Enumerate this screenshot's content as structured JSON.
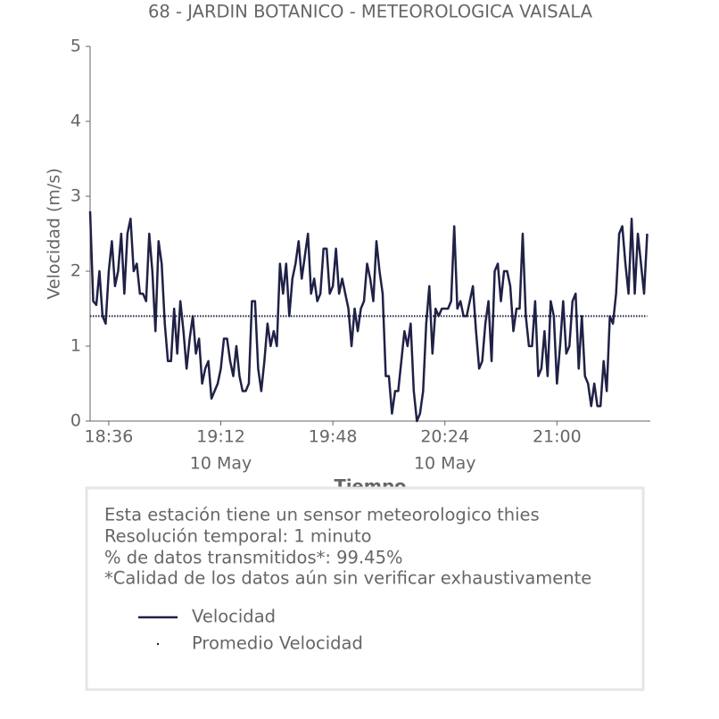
{
  "chart_data": {
    "type": "line",
    "title": "68 - JARDIN BOTANICO - METEOROLOGICA VAISALA",
    "ylabel": "Velocidad (m/s)",
    "xlabel": "Tiempo",
    "x": [
      "18:30",
      "18:31",
      "18:32",
      "18:33",
      "18:34",
      "18:35",
      "18:36",
      "18:37",
      "18:38",
      "18:39",
      "18:40",
      "18:41",
      "18:42",
      "18:43",
      "18:44",
      "18:45",
      "18:46",
      "18:47",
      "18:48",
      "18:49",
      "18:50",
      "18:51",
      "18:52",
      "18:53",
      "18:54",
      "18:55",
      "18:56",
      "18:57",
      "18:58",
      "18:59",
      "19:00",
      "19:01",
      "19:02",
      "19:03",
      "19:04",
      "19:05",
      "19:06",
      "19:07",
      "19:08",
      "19:09",
      "19:10",
      "19:11",
      "19:12",
      "19:13",
      "19:14",
      "19:15",
      "19:16",
      "19:17",
      "19:18",
      "19:19",
      "19:20",
      "19:21",
      "19:22",
      "19:23",
      "19:24",
      "19:25",
      "19:26",
      "19:27",
      "19:28",
      "19:29",
      "19:30",
      "19:31",
      "19:32",
      "19:33",
      "19:34",
      "19:35",
      "19:36",
      "19:37",
      "19:38",
      "19:39",
      "19:40",
      "19:41",
      "19:42",
      "19:43",
      "19:44",
      "19:45",
      "19:46",
      "19:47",
      "19:48",
      "19:49",
      "19:50",
      "19:51",
      "19:52",
      "19:53",
      "19:54",
      "19:55",
      "19:56",
      "19:57",
      "19:58",
      "19:59",
      "20:00",
      "20:01",
      "20:02",
      "20:03",
      "20:04",
      "20:05",
      "20:06",
      "20:07",
      "20:08",
      "20:09",
      "20:10",
      "20:11",
      "20:12",
      "20:13",
      "20:14",
      "20:15",
      "20:16",
      "20:17",
      "20:18",
      "20:19",
      "20:20",
      "20:21",
      "20:22",
      "20:23",
      "20:24",
      "20:25",
      "20:26",
      "20:27",
      "20:28",
      "20:29",
      "20:30",
      "20:31",
      "20:32",
      "20:33",
      "20:34",
      "20:35",
      "20:36",
      "20:37",
      "20:38",
      "20:39",
      "20:40",
      "20:41",
      "20:42",
      "20:43",
      "20:44",
      "20:45",
      "20:46",
      "20:47",
      "20:48",
      "20:49",
      "20:50",
      "20:51",
      "20:52",
      "20:53",
      "20:54",
      "20:55",
      "20:56",
      "20:57",
      "20:58",
      "20:59",
      "21:00",
      "21:01",
      "21:02",
      "21:03",
      "21:04",
      "21:05",
      "21:06",
      "21:07",
      "21:08",
      "21:09",
      "21:10",
      "21:11",
      "21:12",
      "21:13",
      "21:14",
      "21:15",
      "21:16",
      "21:17",
      "21:18",
      "21:19",
      "21:20",
      "21:21",
      "21:22",
      "21:23",
      "21:24",
      "21:25",
      "21:26",
      "21:27",
      "21:28",
      "21:29"
    ],
    "series": [
      {
        "name": "Velocidad",
        "color": "#1f2146",
        "style": "solid",
        "values": [
          2.8,
          1.6,
          1.55,
          2.0,
          1.4,
          1.3,
          2.0,
          2.4,
          1.8,
          2.0,
          2.5,
          1.7,
          2.5,
          2.7,
          2.0,
          2.1,
          1.7,
          1.7,
          1.6,
          2.5,
          2.0,
          1.2,
          2.4,
          2.1,
          1.3,
          0.8,
          0.8,
          1.5,
          0.9,
          1.6,
          1.2,
          0.7,
          1.1,
          1.4,
          0.9,
          1.1,
          0.5,
          0.7,
          0.8,
          0.3,
          0.4,
          0.5,
          0.7,
          1.1,
          1.1,
          0.8,
          0.6,
          1.0,
          0.6,
          0.4,
          0.4,
          0.5,
          1.6,
          1.6,
          0.7,
          0.4,
          0.8,
          1.3,
          1.0,
          1.2,
          1.0,
          2.1,
          1.7,
          2.1,
          1.4,
          1.9,
          2.1,
          2.4,
          1.9,
          2.2,
          2.5,
          1.7,
          1.9,
          1.6,
          1.7,
          2.3,
          2.3,
          1.7,
          1.8,
          2.3,
          1.7,
          1.9,
          1.7,
          1.5,
          1.0,
          1.5,
          1.2,
          1.5,
          1.6,
          2.1,
          1.9,
          1.6,
          2.4,
          2.0,
          1.7,
          0.6,
          0.6,
          0.1,
          0.4,
          0.4,
          0.8,
          1.2,
          1.0,
          1.3,
          0.4,
          0.0,
          0.1,
          0.4,
          1.3,
          1.8,
          0.9,
          1.5,
          1.4,
          1.5,
          1.5,
          1.5,
          1.6,
          2.6,
          1.5,
          1.6,
          1.4,
          1.4,
          1.6,
          1.8,
          1.2,
          0.7,
          0.8,
          1.3,
          1.6,
          0.8,
          2.0,
          2.1,
          1.6,
          2.0,
          2.0,
          1.8,
          1.2,
          1.5,
          1.5,
          2.5,
          1.4,
          1.0,
          1.0,
          1.6,
          0.6,
          0.7,
          1.2,
          0.6,
          1.6,
          1.4,
          0.5,
          1.0,
          1.6,
          0.9,
          1.0,
          1.6,
          1.7,
          0.7,
          1.4,
          0.6,
          0.5,
          0.2,
          0.5,
          0.2,
          0.2,
          0.8,
          0.4,
          1.4,
          1.3,
          1.7,
          2.5,
          2.6,
          2.1,
          1.7,
          2.7,
          1.7,
          2.5,
          2.1,
          1.7,
          2.5
        ]
      },
      {
        "name": "Promedio Velocidad",
        "color": "#1f2146",
        "style": "dotted",
        "x": [
          "18:30",
          "21:29"
        ],
        "values": [
          1.4,
          1.4
        ]
      }
    ],
    "xlim": [
      "18:30",
      "21:30"
    ],
    "xticks": [
      "18:36",
      "19:12",
      "19:48",
      "20:24",
      "21:00"
    ],
    "xtick_dates": [
      null,
      "10 May",
      null,
      "10 May",
      null
    ],
    "ylim": [
      0,
      5
    ],
    "yticks": [
      0,
      1,
      2,
      3,
      4,
      5
    ],
    "info": [
      "Esta estación tiene un sensor meteorologico thies",
      "Resolución temporal: 1 minuto",
      "% de datos transmitidos*: 99.45%",
      "*Calidad de los datos aún sin verificar exhaustivamente"
    ]
  }
}
